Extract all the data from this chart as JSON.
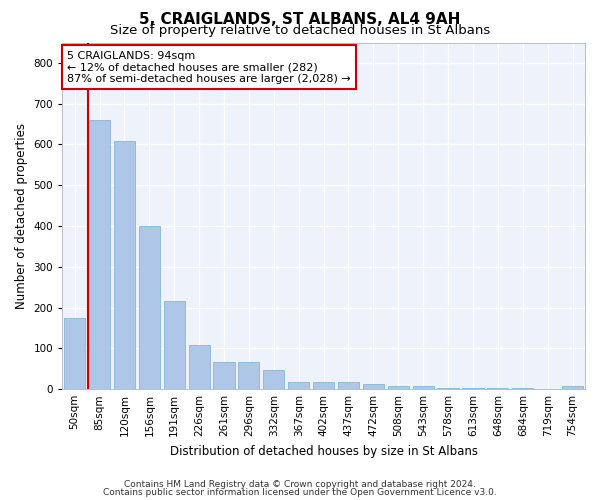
{
  "title": "5, CRAIGLANDS, ST ALBANS, AL4 9AH",
  "subtitle": "Size of property relative to detached houses in St Albans",
  "xlabel": "Distribution of detached houses by size in St Albans",
  "ylabel": "Number of detached properties",
  "categories": [
    "50sqm",
    "85sqm",
    "120sqm",
    "156sqm",
    "191sqm",
    "226sqm",
    "261sqm",
    "296sqm",
    "332sqm",
    "367sqm",
    "402sqm",
    "437sqm",
    "472sqm",
    "508sqm",
    "543sqm",
    "578sqm",
    "613sqm",
    "648sqm",
    "684sqm",
    "719sqm",
    "754sqm"
  ],
  "values": [
    175,
    660,
    608,
    400,
    215,
    108,
    67,
    67,
    47,
    18,
    17,
    17,
    13,
    8,
    8,
    4,
    4,
    2,
    4,
    1,
    7
  ],
  "bar_color": "#aec6e8",
  "bar_edge_color": "#7aafd4",
  "vline_color": "#cc0000",
  "vline_x_index": 1,
  "annotation_text": "5 CRAIGLANDS: 94sqm\n← 12% of detached houses are smaller (282)\n87% of semi-detached houses are larger (2,028) →",
  "annotation_box_color": "#ffffff",
  "annotation_box_edge_color": "#cc0000",
  "ylim": [
    0,
    850
  ],
  "yticks": [
    0,
    100,
    200,
    300,
    400,
    500,
    600,
    700,
    800
  ],
  "footer1": "Contains HM Land Registry data © Crown copyright and database right 2024.",
  "footer2": "Contains public sector information licensed under the Open Government Licence v3.0.",
  "background_color": "#eef2fa",
  "grid_color": "#ffffff",
  "title_fontsize": 11,
  "subtitle_fontsize": 9.5,
  "axis_label_fontsize": 8.5,
  "tick_fontsize": 7.5,
  "footer_fontsize": 6.5,
  "annotation_fontsize": 8
}
